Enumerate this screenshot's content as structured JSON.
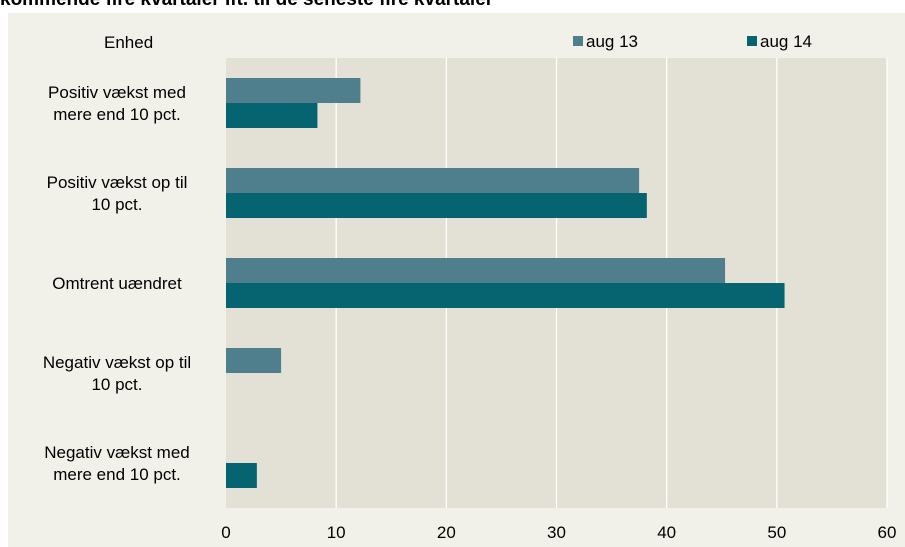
{
  "chart_data": {
    "type": "bar",
    "orientation": "horizontal",
    "title": "kommende fire kvartaler ift. til de seneste fire kvartaler",
    "unit_label": "Enhed",
    "categories": [
      [
        "Positiv vækst med",
        "mere end 10 pct."
      ],
      [
        "Positiv vækst op til",
        "10 pct."
      ],
      [
        "Omtrent uændret"
      ],
      [
        "Negativ vækst op til",
        "10 pct."
      ],
      [
        "Negativ vækst med",
        "mere end 10 pct."
      ]
    ],
    "series": [
      {
        "name": "aug 13",
        "color": "#4f7f8d",
        "values": [
          12.2,
          37.5,
          45.3,
          5.0,
          0
        ]
      },
      {
        "name": "aug 14",
        "color": "#05646f",
        "values": [
          8.3,
          38.2,
          50.7,
          0,
          2.8
        ]
      }
    ],
    "xlim": [
      0,
      60
    ],
    "xticks": [
      0,
      10,
      20,
      30,
      40,
      50,
      60
    ],
    "grid": true,
    "legend_position": "top-right",
    "plot_background": "#e3e0d6",
    "panel_background": "#f1f0e9"
  }
}
